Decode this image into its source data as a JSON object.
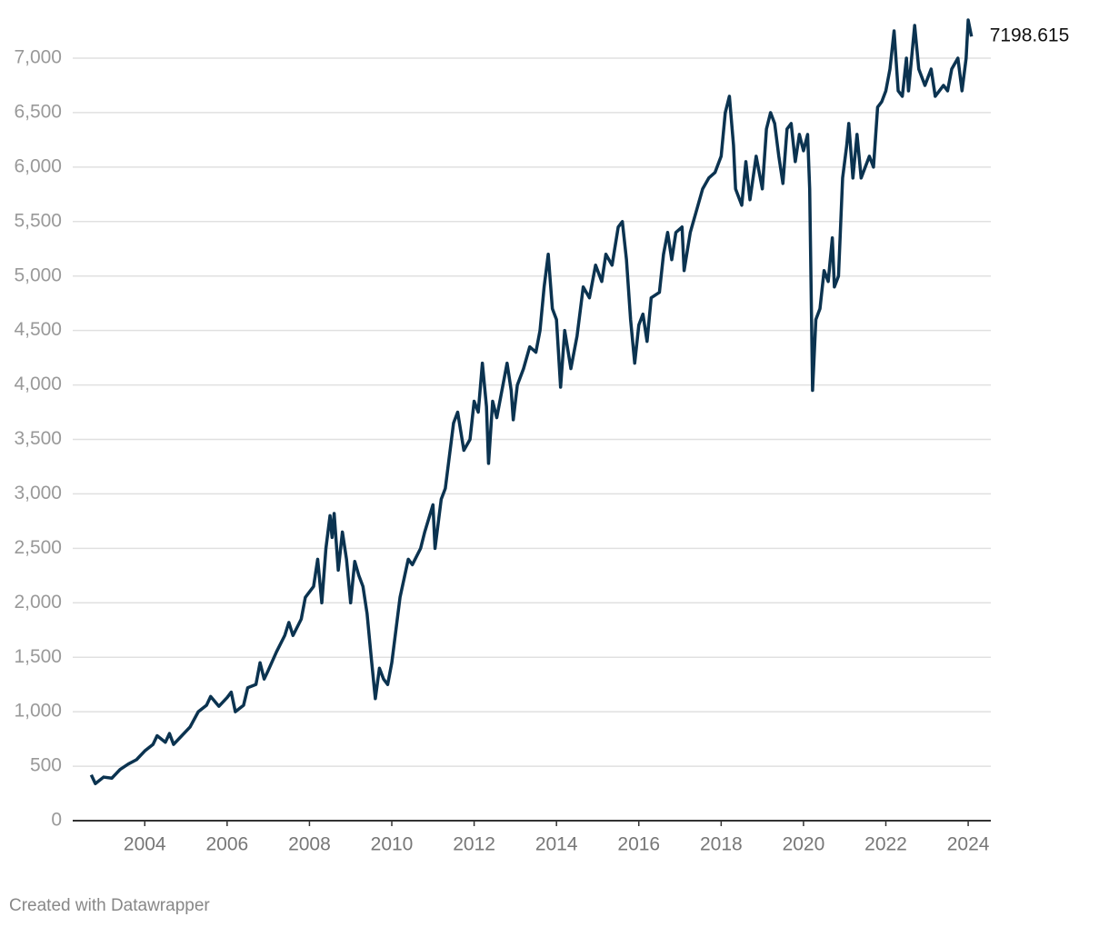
{
  "chart_data": {
    "type": "line",
    "x": [
      2002.7,
      2002.8,
      2003.0,
      2003.2,
      2003.4,
      2003.6,
      2003.8,
      2004.0,
      2004.2,
      2004.3,
      2004.5,
      2004.6,
      2004.7,
      2004.9,
      2005.1,
      2005.3,
      2005.5,
      2005.6,
      2005.8,
      2006.0,
      2006.1,
      2006.2,
      2006.4,
      2006.5,
      2006.7,
      2006.8,
      2006.9,
      2007.0,
      2007.2,
      2007.4,
      2007.5,
      2007.6,
      2007.8,
      2007.9,
      2008.1,
      2008.2,
      2008.3,
      2008.4,
      2008.5,
      2008.55,
      2008.6,
      2008.7,
      2008.8,
      2008.9,
      2009.0,
      2009.1,
      2009.2,
      2009.3,
      2009.4,
      2009.5,
      2009.6,
      2009.7,
      2009.8,
      2009.9,
      2010.0,
      2010.1,
      2010.2,
      2010.4,
      2010.5,
      2010.7,
      2010.8,
      2011.0,
      2011.05,
      2011.2,
      2011.3,
      2011.5,
      2011.6,
      2011.75,
      2011.9,
      2012.0,
      2012.1,
      2012.2,
      2012.3,
      2012.35,
      2012.45,
      2012.55,
      2012.7,
      2012.8,
      2012.9,
      2012.95,
      2013.05,
      2013.2,
      2013.35,
      2013.5,
      2013.6,
      2013.7,
      2013.8,
      2013.9,
      2014.0,
      2014.1,
      2014.2,
      2014.35,
      2014.5,
      2014.65,
      2014.8,
      2014.95,
      2015.1,
      2015.2,
      2015.35,
      2015.5,
      2015.6,
      2015.7,
      2015.8,
      2015.9,
      2016.0,
      2016.1,
      2016.2,
      2016.3,
      2016.5,
      2016.6,
      2016.7,
      2016.8,
      2016.9,
      2017.05,
      2017.1,
      2017.25,
      2017.4,
      2017.55,
      2017.7,
      2017.85,
      2018.0,
      2018.1,
      2018.2,
      2018.3,
      2018.35,
      2018.5,
      2018.6,
      2018.7,
      2018.85,
      2019.0,
      2019.1,
      2019.2,
      2019.3,
      2019.4,
      2019.5,
      2019.6,
      2019.7,
      2019.8,
      2019.9,
      2020.0,
      2020.1,
      2020.15,
      2020.22,
      2020.3,
      2020.4,
      2020.5,
      2020.6,
      2020.7,
      2020.75,
      2020.85,
      2020.95,
      2021.05,
      2021.1,
      2021.2,
      2021.3,
      2021.4,
      2021.5,
      2021.6,
      2021.7,
      2021.8,
      2021.9,
      2022.0,
      2022.1,
      2022.2,
      2022.3,
      2022.4,
      2022.5,
      2022.55,
      2022.7,
      2022.8,
      2022.95,
      2023.1,
      2023.2,
      2023.4,
      2023.5,
      2023.6,
      2023.75,
      2023.85,
      2023.95,
      2024.0,
      2024.08
    ],
    "series": [
      {
        "color": "#0b3350",
        "values": [
          420,
          340,
          400,
          390,
          470,
          520,
          560,
          640,
          700,
          780,
          720,
          800,
          700,
          780,
          860,
          1000,
          1060,
          1140,
          1050,
          1130,
          1180,
          1000,
          1060,
          1220,
          1250,
          1450,
          1300,
          1380,
          1550,
          1700,
          1820,
          1700,
          1850,
          2050,
          2150,
          2400,
          2000,
          2500,
          2800,
          2600,
          2820,
          2300,
          2650,
          2400,
          2000,
          2380,
          2250,
          2150,
          1900,
          1500,
          1120,
          1400,
          1300,
          1250,
          1450,
          1750,
          2050,
          2400,
          2350,
          2500,
          2650,
          2900,
          2500,
          2950,
          3050,
          3650,
          3750,
          3400,
          3500,
          3850,
          3750,
          4200,
          3800,
          3280,
          3850,
          3700,
          4000,
          4200,
          3950,
          3680,
          4000,
          4150,
          4350,
          4300,
          4500,
          4900,
          5200,
          4700,
          4600,
          3980,
          4500,
          4150,
          4450,
          4900,
          4800,
          5100,
          4950,
          5200,
          5100,
          5450,
          5500,
          5150,
          4600,
          4200,
          4550,
          4650,
          4400,
          4800,
          4850,
          5200,
          5400,
          5150,
          5400,
          5450,
          5050,
          5400,
          5600,
          5800,
          5900,
          5950,
          6100,
          6500,
          6650,
          6200,
          5800,
          5650,
          6050,
          5700,
          6100,
          5800,
          6350,
          6500,
          6400,
          6100,
          5850,
          6350,
          6400,
          6050,
          6300,
          6150,
          6300,
          5800,
          3950,
          4600,
          4700,
          5050,
          4950,
          5350,
          4900,
          5000,
          5900,
          6200,
          6400,
          5900,
          6300,
          5900,
          6000,
          6100,
          6000,
          6550,
          6600,
          6700,
          6900,
          7250,
          6700,
          6650,
          7000,
          6700,
          7300,
          6900,
          6750,
          6900,
          6650,
          6750,
          6700,
          6900,
          7000,
          6700,
          7000,
          7350,
          7198.615
        ]
      }
    ],
    "xlim": [
      2002.25,
      2024.55
    ],
    "xticks": [
      2004,
      2006,
      2008,
      2010,
      2012,
      2014,
      2016,
      2018,
      2020,
      2022,
      2024
    ],
    "ylim": [
      0,
      7000
    ],
    "yticks": [
      0,
      500,
      {
        "value": 1000,
        "label": "1,000"
      },
      {
        "value": 1500,
        "label": "1,500"
      },
      {
        "value": 2000,
        "label": "2,000"
      },
      {
        "value": 2500,
        "label": "2,500"
      },
      {
        "value": 3000,
        "label": "3,000"
      },
      {
        "value": 3500,
        "label": "3,500"
      },
      {
        "value": 4000,
        "label": "4,000"
      },
      {
        "value": 4500,
        "label": "4,500"
      },
      {
        "value": 5000,
        "label": "5,000"
      },
      {
        "value": 5500,
        "label": "5,500"
      },
      {
        "value": 6000,
        "label": "6,000"
      },
      {
        "value": 6500,
        "label": "6,500"
      },
      {
        "value": 7000,
        "label": "7,000"
      }
    ],
    "grid": true,
    "credit": "Created with Datawrapper"
  }
}
